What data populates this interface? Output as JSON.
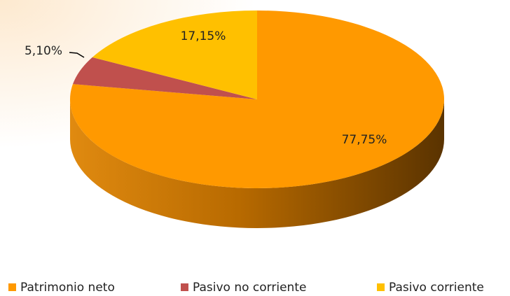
{
  "chart_data": {
    "type": "pie3d",
    "categories": [
      "Patrimonio neto",
      "Pasivo no corriente",
      "Pasivo corriente"
    ],
    "values": [
      77.75,
      5.1,
      17.15
    ],
    "value_labels": [
      "77,75%",
      "5,10%",
      "17,15%"
    ],
    "colors": [
      "#ff9900",
      "#c0504d",
      "#ffc000"
    ],
    "legend": "bottom"
  }
}
